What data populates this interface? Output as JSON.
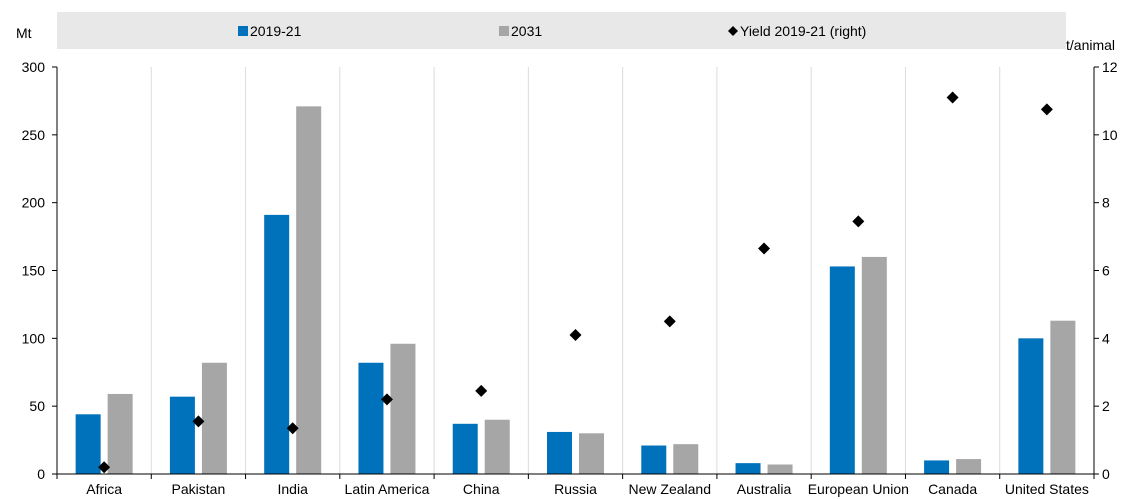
{
  "chart_data": {
    "type": "bar",
    "categories": [
      "Africa",
      "Pakistan",
      "India",
      "Latin America",
      "China",
      "Russia",
      "New Zealand",
      "Australia",
      "European Union",
      "Canada",
      "United States"
    ],
    "series": [
      {
        "name": "2019-21",
        "axis": "left",
        "type": "bar",
        "color": "#0072bc",
        "values": [
          44,
          57,
          191,
          82,
          37,
          31,
          21,
          8,
          153,
          10,
          100
        ]
      },
      {
        "name": "2031",
        "axis": "left",
        "type": "bar",
        "color": "#a6a6a6",
        "values": [
          59,
          82,
          271,
          96,
          40,
          30,
          22,
          7,
          160,
          11,
          113
        ]
      },
      {
        "name": "Yield 2019-21 (right)",
        "axis": "right",
        "type": "scatter",
        "marker": "diamond",
        "color": "#000000",
        "values": [
          0.2,
          1.55,
          1.35,
          2.2,
          2.45,
          4.1,
          4.5,
          6.65,
          7.45,
          11.1,
          10.75
        ]
      }
    ],
    "left_axis": {
      "unit": "Mt",
      "ylim": [
        0,
        300
      ],
      "ticks": [
        "0",
        "50",
        "100",
        "150",
        "200",
        "250",
        "300"
      ]
    },
    "right_axis": {
      "unit": "t/animal",
      "ylim": [
        0,
        12
      ],
      "ticks": [
        "0",
        "2",
        "4",
        "6",
        "8",
        "10",
        "12"
      ]
    },
    "grid": "vertical",
    "legend_position": "top"
  }
}
